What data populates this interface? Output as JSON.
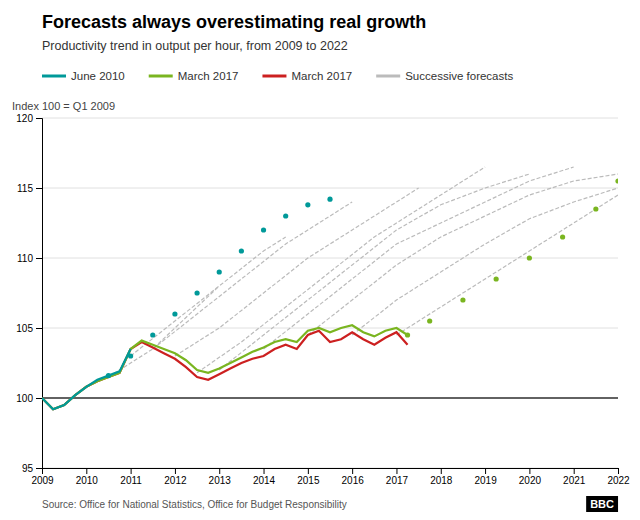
{
  "chart_data": {
    "type": "line",
    "title": "Forecasts always overestimating real growth",
    "subtitle": "Productivity trend in output per hour, from 2009 to 2022",
    "y_label": "Index 100 = Q1 2009",
    "source": "Source: Office for National Statistics, Office for Budget Responsibility",
    "logo": "BBC",
    "xlim": [
      2009,
      2022
    ],
    "ylim": [
      95,
      120
    ],
    "xticks": [
      2009,
      2010,
      2011,
      2012,
      2013,
      2014,
      2015,
      2016,
      2017,
      2018,
      2019,
      2020,
      2021,
      2022
    ],
    "yticks": [
      95,
      100,
      105,
      110,
      115,
      120
    ],
    "grid": "y",
    "baseline": {
      "value": 100,
      "color": "#333333"
    },
    "series": [
      {
        "name": "June 2010",
        "color": "#009999",
        "line_style": "solid",
        "x": [
          2009.0,
          2009.25,
          2009.5,
          2009.75,
          2010.0,
          2010.25,
          2010.5,
          2010.75,
          2011.0
        ],
        "values": [
          100.0,
          99.2,
          99.5,
          100.2,
          100.8,
          101.3,
          101.6,
          101.9,
          103.5
        ]
      },
      {
        "color": "#009999",
        "line_style": "none",
        "marker": "circle",
        "x": [
          2010.5,
          2011.0,
          2011.5,
          2012.0,
          2012.5,
          2013.0,
          2013.5,
          2014.0,
          2014.5,
          2015.0,
          2015.5
        ],
        "values": [
          101.6,
          103.0,
          104.5,
          106.0,
          107.5,
          109.0,
          110.5,
          112.0,
          113.0,
          113.8,
          114.2
        ]
      },
      {
        "name": "March 2017",
        "color": "#7AB520",
        "line_style": "solid",
        "x": [
          2009.0,
          2009.25,
          2009.5,
          2009.75,
          2010.0,
          2010.25,
          2010.5,
          2010.75,
          2011.0,
          2011.25,
          2011.5,
          2011.75,
          2012.0,
          2012.25,
          2012.5,
          2012.75,
          2013.0,
          2013.25,
          2013.5,
          2013.75,
          2014.0,
          2014.25,
          2014.5,
          2014.75,
          2015.0,
          2015.25,
          2015.5,
          2015.75,
          2016.0,
          2016.25,
          2016.5,
          2016.75,
          2017.0,
          2017.25
        ],
        "values": [
          100.0,
          99.2,
          99.5,
          100.2,
          100.8,
          101.2,
          101.5,
          101.8,
          103.5,
          104.1,
          103.8,
          103.5,
          103.2,
          102.7,
          102.0,
          101.8,
          102.1,
          102.5,
          102.9,
          103.3,
          103.6,
          104.0,
          104.2,
          104.0,
          104.8,
          105.0,
          104.7,
          105.0,
          105.2,
          104.7,
          104.4,
          104.8,
          105.0,
          104.5
        ]
      },
      {
        "color": "#7AB520",
        "line_style": "none",
        "marker": "circle",
        "x": [
          2017.25,
          2017.75,
          2018.5,
          2019.25,
          2020.0,
          2020.75,
          2021.5,
          2022.0
        ],
        "values": [
          104.5,
          105.5,
          107.0,
          108.5,
          110.0,
          111.5,
          113.5,
          115.5
        ]
      },
      {
        "name": "March 2017",
        "color": "#CC2020",
        "line_style": "solid",
        "x": [
          2009.0,
          2009.25,
          2009.5,
          2009.75,
          2010.0,
          2010.25,
          2010.5,
          2010.75,
          2011.0,
          2011.25,
          2011.5,
          2011.75,
          2012.0,
          2012.25,
          2012.5,
          2012.75,
          2013.0,
          2013.25,
          2013.5,
          2013.75,
          2014.0,
          2014.25,
          2014.5,
          2014.75,
          2015.0,
          2015.25,
          2015.5,
          2015.75,
          2016.0,
          2016.25,
          2016.5,
          2016.75,
          2017.0,
          2017.25
        ],
        "values": [
          100.0,
          99.2,
          99.5,
          100.2,
          100.8,
          101.2,
          101.5,
          101.8,
          103.5,
          104.0,
          103.6,
          103.2,
          102.8,
          102.2,
          101.5,
          101.3,
          101.7,
          102.1,
          102.5,
          102.8,
          103.0,
          103.5,
          103.8,
          103.5,
          104.5,
          104.8,
          104.0,
          104.2,
          104.7,
          104.2,
          103.8,
          104.3,
          104.7,
          103.8
        ]
      },
      {
        "name": "Successive forecasts",
        "color": "#BBBBBB",
        "line_style": "dashed",
        "x": [
          2010.5,
          2011.5,
          2012.5,
          2013.0
        ],
        "values": [
          101.5,
          103.5,
          106.5,
          108.0
        ]
      },
      {
        "color": "#BBBBBB",
        "line_style": "dashed",
        "x": [
          2011.0,
          2012.0,
          2013.0,
          2014.0,
          2014.5
        ],
        "values": [
          103.0,
          105.5,
          108.0,
          110.5,
          111.5
        ]
      },
      {
        "color": "#BBBBBB",
        "line_style": "dashed",
        "x": [
          2011.5,
          2012.5,
          2013.5,
          2014.5,
          2015.5,
          2016.0
        ],
        "values": [
          103.5,
          106.0,
          108.5,
          111.0,
          113.0,
          114.0
        ]
      },
      {
        "color": "#BBBBBB",
        "line_style": "dashed",
        "x": [
          2012.0,
          2013.0,
          2014.0,
          2015.0,
          2016.0,
          2017.0,
          2017.5
        ],
        "values": [
          103.0,
          105.0,
          107.5,
          110.0,
          112.0,
          114.0,
          115.0
        ]
      },
      {
        "color": "#BBBBBB",
        "line_style": "dashed",
        "x": [
          2012.5,
          2013.5,
          2014.5,
          2015.5,
          2016.5,
          2017.5,
          2018.5,
          2019.0
        ],
        "values": [
          101.8,
          104.0,
          106.5,
          109.0,
          111.5,
          113.5,
          115.5,
          116.5
        ]
      },
      {
        "color": "#BBBBBB",
        "line_style": "dashed",
        "x": [
          2013.0,
          2014.0,
          2015.0,
          2016.0,
          2017.0,
          2018.0,
          2019.0,
          2020.0
        ],
        "values": [
          102.0,
          104.5,
          107.0,
          109.5,
          112.0,
          113.8,
          115.0,
          116.0
        ]
      },
      {
        "color": "#BBBBBB",
        "line_style": "dashed",
        "x": [
          2014.0,
          2015.0,
          2016.0,
          2017.0,
          2018.0,
          2019.0,
          2020.0,
          2021.0
        ],
        "values": [
          103.5,
          106.0,
          108.5,
          111.0,
          112.5,
          114.0,
          115.5,
          116.5
        ]
      },
      {
        "color": "#BBBBBB",
        "line_style": "dashed",
        "x": [
          2015.0,
          2016.0,
          2017.0,
          2018.0,
          2019.0,
          2020.0,
          2021.0,
          2022.0
        ],
        "values": [
          104.5,
          107.0,
          109.5,
          111.5,
          113.0,
          114.5,
          115.5,
          116.0
        ]
      },
      {
        "color": "#BBBBBB",
        "line_style": "dashed",
        "x": [
          2016.0,
          2017.0,
          2018.0,
          2019.0,
          2020.0,
          2021.0,
          2022.0
        ],
        "values": [
          104.5,
          107.0,
          109.0,
          111.0,
          112.8,
          114.0,
          115.0
        ]
      },
      {
        "color": "#BBBBBB",
        "line_style": "dashed",
        "x": [
          2017.0,
          2018.0,
          2019.0,
          2020.0,
          2021.0,
          2022.0
        ],
        "values": [
          104.5,
          106.5,
          108.5,
          110.5,
          112.5,
          114.5
        ]
      }
    ]
  }
}
